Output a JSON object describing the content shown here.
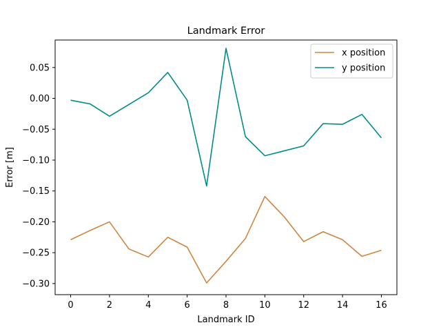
{
  "chart_data": {
    "type": "line",
    "title": "Landmark Error",
    "xlabel": "Landmark ID",
    "ylabel": "Error [m]",
    "xlim": [
      -0.8,
      16.8
    ],
    "ylim": [
      -0.318,
      0.0945
    ],
    "xticks": [
      0,
      2,
      4,
      6,
      8,
      10,
      12,
      14,
      16
    ],
    "xtick_labels": [
      "0",
      "2",
      "4",
      "6",
      "8",
      "10",
      "12",
      "14",
      "16"
    ],
    "yticks": [
      0.05,
      0.0,
      -0.05,
      -0.1,
      -0.15,
      -0.2,
      -0.25,
      -0.3
    ],
    "ytick_labels": [
      "0.05",
      "0.00",
      "−0.05",
      "−0.10",
      "−0.15",
      "−0.20",
      "−0.25",
      "−0.30"
    ],
    "grid": false,
    "legend_position": "top-right",
    "x": [
      0,
      1,
      2,
      3,
      4,
      5,
      6,
      7,
      8,
      9,
      10,
      11,
      12,
      13,
      14,
      15,
      16
    ],
    "series": [
      {
        "name": "x position",
        "color": "#cd853f",
        "values": [
          -0.229,
          -0.214,
          -0.2,
          -0.244,
          -0.257,
          -0.225,
          -0.241,
          -0.299,
          -0.264,
          -0.227,
          -0.159,
          -0.192,
          -0.232,
          -0.216,
          -0.229,
          -0.256,
          -0.246
        ]
      },
      {
        "name": "y position",
        "color": "#008b8b",
        "values": [
          -0.003,
          -0.009,
          -0.029,
          -0.01,
          0.009,
          0.042,
          -0.003,
          -0.142,
          0.081,
          -0.062,
          -0.093,
          -0.085,
          -0.077,
          -0.041,
          -0.042,
          -0.026,
          -0.064
        ]
      }
    ]
  }
}
